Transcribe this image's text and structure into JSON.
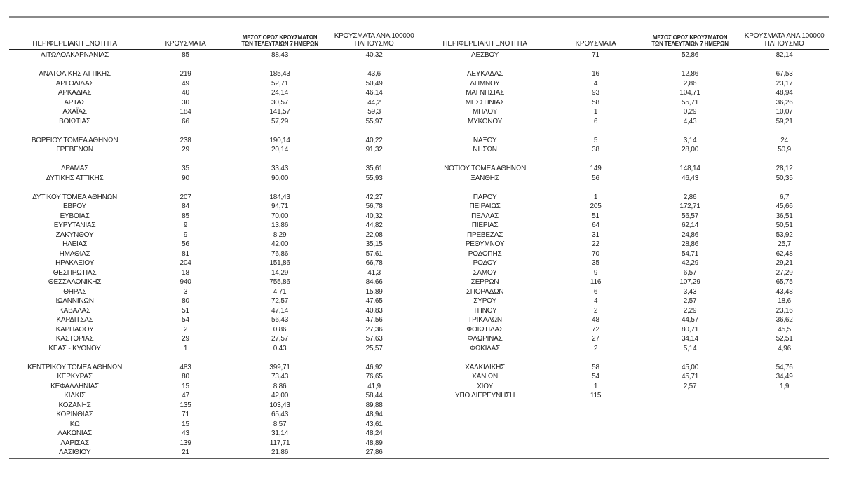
{
  "page": {
    "background": "#ffffff",
    "text_color": "#1f1f1f"
  },
  "table": {
    "headers": {
      "region": "ΠΕΡΙΦΕΡΕΙΑΚΗ ΕΝΟΤΗΤΑ",
      "cases": "ΚΡΟΥΣΜΑΤΑ",
      "avg7": "ΜΕΣΟΣ ΟΡΟΣ ΚΡΟΥΣΜΑΤΩΝ ΤΩΝ ΤΕΛΕΥΤΑΙΩΝ 7 ΗΜΕΡΩΝ",
      "per100k": "ΚΡΟΥΣΜΑΤΑ ΑΝΑ 100000 ΠΛΗΘΥΣΜΟ"
    },
    "rules": {
      "top_color": "#8a8a8a",
      "header_color": "#1f1f1f",
      "bottom_color": "#5a5a5a"
    },
    "left_rows": [
      [
        "ΑΙΤΩΛΟΑΚΑΡΝΑΝΙΑΣ",
        "85",
        "88,43",
        "40,32"
      ],
      null,
      [
        "ΑΝΑΤΟΛΙΚΗΣ ΑΤΤΙΚΗΣ",
        "219",
        "185,43",
        "43,6"
      ],
      [
        "ΑΡΓΟΛΙΔΑΣ",
        "49",
        "52,71",
        "50,49"
      ],
      [
        "ΑΡΚΑΔΙΑΣ",
        "40",
        "24,14",
        "46,14"
      ],
      [
        "ΑΡΤΑΣ",
        "30",
        "30,57",
        "44,2"
      ],
      [
        "ΑΧΑΪΑΣ",
        "184",
        "141,57",
        "59,3"
      ],
      [
        "ΒΟΙΩΤΙΑΣ",
        "66",
        "57,29",
        "55,97"
      ],
      null,
      [
        "ΒΟΡΕΙΟΥ ΤΟΜΕΑ ΑΘΗΝΩΝ",
        "238",
        "190,14",
        "40,22"
      ],
      [
        "ΓΡΕΒΕΝΩΝ",
        "29",
        "20,14",
        "91,32"
      ],
      null,
      [
        "ΔΡΑΜΑΣ",
        "35",
        "33,43",
        "35,61"
      ],
      [
        "ΔΥΤΙΚΗΣ ΑΤΤΙΚΗΣ",
        "90",
        "90,00",
        "55,93"
      ],
      null,
      [
        "ΔΥΤΙΚΟΥ ΤΟΜΕΑ ΑΘΗΝΩΝ",
        "207",
        "184,43",
        "42,27"
      ],
      [
        "ΕΒΡΟΥ",
        "84",
        "94,71",
        "56,78"
      ],
      [
        "ΕΥΒΟΙΑΣ",
        "85",
        "70,00",
        "40,32"
      ],
      [
        "ΕΥΡΥΤΑΝΙΑΣ",
        "9",
        "13,86",
        "44,82"
      ],
      [
        "ΖΑΚΥΝΘΟΥ",
        "9",
        "8,29",
        "22,08"
      ],
      [
        "ΗΛΕΙΑΣ",
        "56",
        "42,00",
        "35,15"
      ],
      [
        "ΗΜΑΘΙΑΣ",
        "81",
        "76,86",
        "57,61"
      ],
      [
        "ΗΡΑΚΛΕΙΟΥ",
        "204",
        "151,86",
        "66,78"
      ],
      [
        "ΘΕΣΠΡΩΤΙΑΣ",
        "18",
        "14,29",
        "41,3"
      ],
      [
        "ΘΕΣΣΑΛΟΝΙΚΗΣ",
        "940",
        "755,86",
        "84,66"
      ],
      [
        "ΘΗΡΑΣ",
        "3",
        "4,71",
        "15,89"
      ],
      [
        "ΙΩΑΝΝΙΝΩΝ",
        "80",
        "72,57",
        "47,65"
      ],
      [
        "ΚΑΒΑΛΑΣ",
        "51",
        "47,14",
        "40,83"
      ],
      [
        "ΚΑΡΔΙΤΣΑΣ",
        "54",
        "56,43",
        "47,56"
      ],
      [
        "ΚΑΡΠΑΘΟΥ",
        "2",
        "0,86",
        "27,36"
      ],
      [
        "ΚΑΣΤΟΡΙΑΣ",
        "29",
        "27,57",
        "57,63"
      ],
      [
        "ΚΕΑΣ - ΚΥΘΝΟΥ",
        "1",
        "0,43",
        "25,57"
      ],
      null,
      [
        "ΚΕΝΤΡΙΚΟΥ ΤΟΜΕΑ ΑΘΗΝΩΝ",
        "483",
        "399,71",
        "46,92"
      ],
      [
        "ΚΕΡΚΥΡΑΣ",
        "80",
        "73,43",
        "76,65"
      ],
      [
        "ΚΕΦΑΛΛΗΝΙΑΣ",
        "15",
        "8,86",
        "41,9"
      ],
      [
        "ΚΙΛΚΙΣ",
        "47",
        "42,00",
        "58,44"
      ],
      [
        "ΚΟΖΑΝΗΣ",
        "135",
        "103,43",
        "89,88"
      ],
      [
        "ΚΟΡΙΝΘΙΑΣ",
        "71",
        "65,43",
        "48,94"
      ],
      [
        "ΚΩ",
        "15",
        "8,57",
        "43,61"
      ],
      [
        "ΛΑΚΩΝΙΑΣ",
        "43",
        "31,14",
        "48,24"
      ],
      [
        "ΛΑΡΙΣΑΣ",
        "139",
        "117,71",
        "48,89"
      ],
      [
        "ΛΑΣΙΘΙΟΥ",
        "21",
        "21,86",
        "27,86"
      ]
    ],
    "right_rows": [
      [
        "ΛΕΣΒΟΥ",
        "71",
        "52,86",
        "82,14"
      ],
      null,
      [
        "ΛΕΥΚΑΔΑΣ",
        "16",
        "12,86",
        "67,53"
      ],
      [
        "ΛΗΜΝΟΥ",
        "4",
        "2,86",
        "23,17"
      ],
      [
        "ΜΑΓΝΗΣΙΑΣ",
        "93",
        "104,71",
        "48,94"
      ],
      [
        "ΜΕΣΣΗΝΙΑΣ",
        "58",
        "55,71",
        "36,26"
      ],
      [
        "ΜΗΛΟΥ",
        "1",
        "0,29",
        "10,07"
      ],
      [
        "ΜΥΚΟΝΟΥ",
        "6",
        "4,43",
        "59,21"
      ],
      null,
      [
        "ΝΑΞΟΥ",
        "5",
        "3,14",
        "24"
      ],
      [
        "ΝΗΣΩΝ",
        "38",
        "28,00",
        "50,9"
      ],
      null,
      [
        "ΝΟΤΙΟΥ ΤΟΜΕΑ ΑΘΗΝΩΝ",
        "149",
        "148,14",
        "28,12"
      ],
      [
        "ΞΑΝΘΗΣ",
        "56",
        "46,43",
        "50,35"
      ],
      null,
      [
        "ΠΑΡΟΥ",
        "1",
        "2,86",
        "6,7"
      ],
      [
        "ΠΕΙΡΑΙΩΣ",
        "205",
        "172,71",
        "45,66"
      ],
      [
        "ΠΕΛΛΑΣ",
        "51",
        "56,57",
        "36,51"
      ],
      [
        "ΠΙΕΡΙΑΣ",
        "64",
        "62,14",
        "50,51"
      ],
      [
        "ΠΡΕΒΕΖΑΣ",
        "31",
        "24,86",
        "53,92"
      ],
      [
        "ΡΕΘΥΜΝΟΥ",
        "22",
        "28,86",
        "25,7"
      ],
      [
        "ΡΟΔΟΠΗΣ",
        "70",
        "54,71",
        "62,48"
      ],
      [
        "ΡΟΔΟΥ",
        "35",
        "42,29",
        "29,21"
      ],
      [
        "ΣΑΜΟΥ",
        "9",
        "6,57",
        "27,29"
      ],
      [
        "ΣΕΡΡΩΝ",
        "116",
        "107,29",
        "65,75"
      ],
      [
        "ΣΠΟΡΑΔΩΝ",
        "6",
        "3,43",
        "43,48"
      ],
      [
        "ΣΥΡΟΥ",
        "4",
        "2,57",
        "18,6"
      ],
      [
        "ΤΗΝΟΥ",
        "2",
        "2,29",
        "23,16"
      ],
      [
        "ΤΡΙΚΑΛΩΝ",
        "48",
        "44,57",
        "36,62"
      ],
      [
        "ΦΘΙΩΤΙΔΑΣ",
        "72",
        "80,71",
        "45,5"
      ],
      [
        "ΦΛΩΡΙΝΑΣ",
        "27",
        "34,14",
        "52,51"
      ],
      [
        "ΦΩΚΙΔΑΣ",
        "2",
        "5,14",
        "4,96"
      ],
      null,
      [
        "ΧΑΛΚΙΔΙΚΗΣ",
        "58",
        "45,00",
        "54,76"
      ],
      [
        "ΧΑΝΙΩΝ",
        "54",
        "45,71",
        "34,49"
      ],
      [
        "ΧΙΟΥ",
        "1",
        "2,57",
        "1,9"
      ],
      [
        "ΥΠΟ ΔΙΕΡΕΥΝΗΣΗ",
        "115",
        "",
        ""
      ],
      null,
      null,
      null,
      null,
      null,
      null
    ]
  }
}
